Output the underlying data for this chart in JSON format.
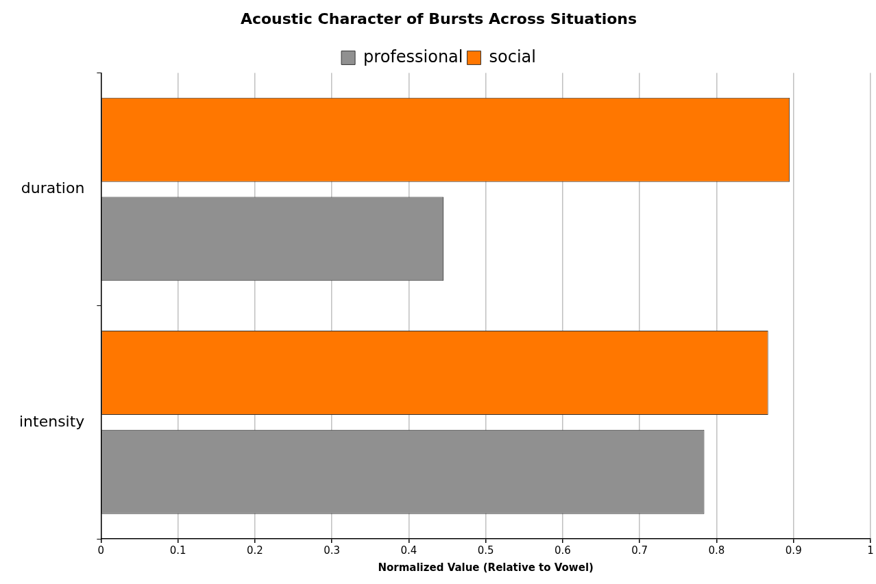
{
  "chart_data": {
    "type": "bar",
    "orientation": "horizontal",
    "title": "Acoustic Character of Bursts Across Situations",
    "xlabel": "Normalized Value (Relative to Vowel)",
    "categories": [
      "duration",
      "intensity"
    ],
    "series": [
      {
        "name": "professional",
        "color": "#909090",
        "values": [
          0.445,
          0.784
        ]
      },
      {
        "name": "social",
        "color": "#ff7700",
        "values": [
          0.895,
          0.867
        ]
      }
    ],
    "xlim": [
      0,
      1
    ],
    "xticks": [
      0,
      0.1,
      0.2,
      0.3,
      0.4,
      0.5,
      0.6,
      0.7,
      0.8,
      0.9,
      1
    ],
    "grid": "x",
    "legend": "top"
  }
}
